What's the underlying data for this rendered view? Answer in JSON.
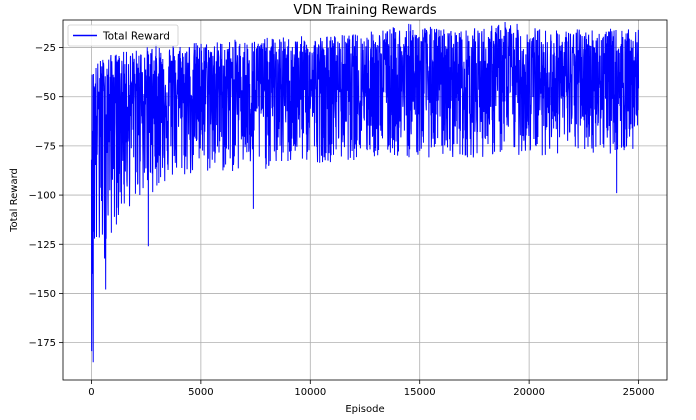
{
  "chart_data": {
    "type": "line",
    "title": "VDN Training Rewards",
    "xlabel": "Episode",
    "ylabel": "Total Reward",
    "xlim": [
      -1300,
      26300
    ],
    "ylim": [
      -194,
      -11
    ],
    "xticks": [
      0,
      5000,
      10000,
      15000,
      20000,
      25000
    ],
    "yticks": [
      -175,
      -150,
      -125,
      -100,
      -75,
      -50,
      -25
    ],
    "grid": true,
    "legend_position": "top-left",
    "series": [
      {
        "name": "Total Reward",
        "color": "#0000ff",
        "episodes": 25000,
        "upper_envelope": [
          [
            0,
            -38
          ],
          [
            100,
            -34
          ],
          [
            500,
            -30
          ],
          [
            1000,
            -28
          ],
          [
            2000,
            -26
          ],
          [
            3000,
            -23
          ],
          [
            5000,
            -22
          ],
          [
            8000,
            -20
          ],
          [
            10000,
            -19
          ],
          [
            12000,
            -18
          ],
          [
            14500,
            -13
          ],
          [
            17000,
            -16
          ],
          [
            19000,
            -12
          ],
          [
            21000,
            -16
          ],
          [
            23000,
            -15
          ],
          [
            25000,
            -16
          ]
        ],
        "lower_envelope": [
          [
            0,
            -185
          ],
          [
            100,
            -135
          ],
          [
            300,
            -140
          ],
          [
            700,
            -130
          ],
          [
            1000,
            -118
          ],
          [
            1500,
            -110
          ],
          [
            2000,
            -104
          ],
          [
            2600,
            -100
          ],
          [
            3500,
            -94
          ],
          [
            5000,
            -90
          ],
          [
            7500,
            -88
          ],
          [
            10000,
            -84
          ],
          [
            12500,
            -82
          ],
          [
            15000,
            -81
          ],
          [
            17500,
            -81
          ],
          [
            20000,
            -80
          ],
          [
            22500,
            -79
          ],
          [
            25000,
            -79
          ]
        ],
        "mean_curve": [
          [
            0,
            -58
          ],
          [
            1000,
            -53
          ],
          [
            2500,
            -50
          ],
          [
            5000,
            -48
          ],
          [
            10000,
            -45
          ],
          [
            15000,
            -44
          ],
          [
            20000,
            -43
          ],
          [
            25000,
            -42
          ]
        ],
        "notable_points": [
          [
            80,
            -185
          ],
          [
            650,
            -148
          ],
          [
            2600,
            -126
          ],
          [
            7400,
            -107
          ],
          [
            14500,
            -13
          ],
          [
            18900,
            -12
          ],
          [
            24000,
            -99
          ]
        ]
      }
    ]
  }
}
